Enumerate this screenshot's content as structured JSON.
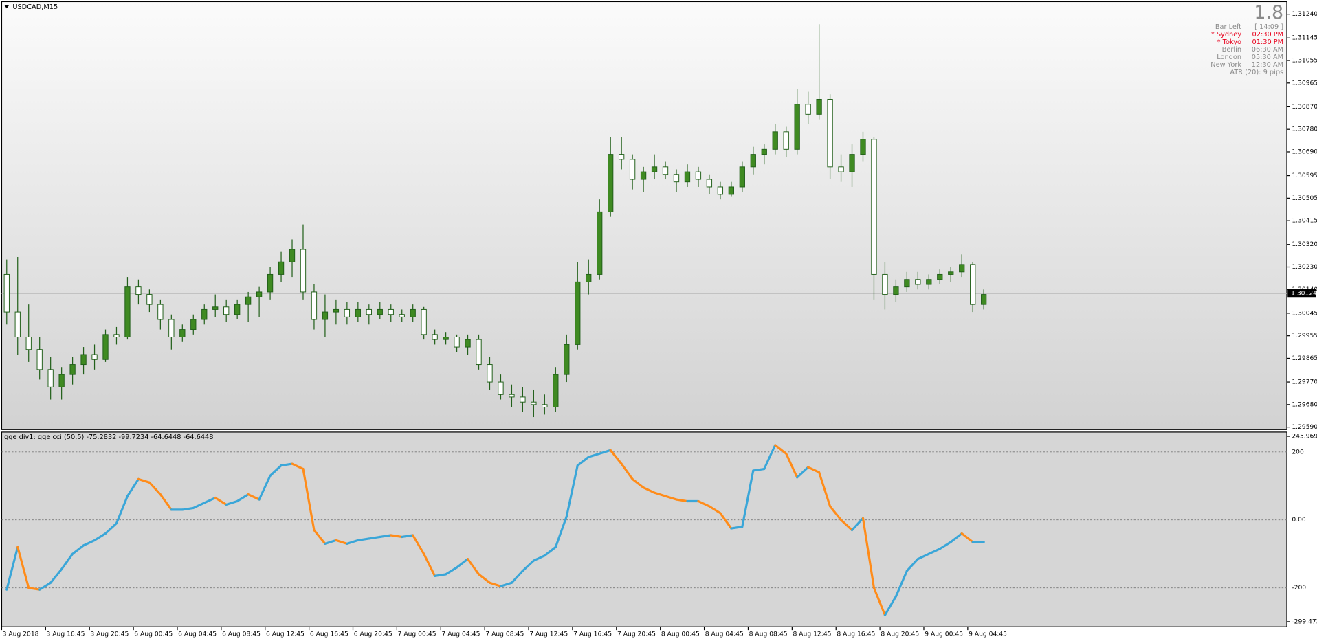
{
  "info_panel": {
    "spread": "1.8",
    "rows": [
      {
        "label": "Bar Left",
        "value": "[ 14:09 ]",
        "highlight": false
      },
      {
        "label": "* Sydney",
        "value": "02:30 PM",
        "highlight": true
      },
      {
        "label": "* Tokyo",
        "value": "01:30 PM",
        "highlight": true
      },
      {
        "label": "Berlin",
        "value": "06:30 AM",
        "highlight": false
      },
      {
        "label": "London",
        "value": "05:30 AM",
        "highlight": false
      },
      {
        "label": "New York",
        "value": "12:30 AM",
        "highlight": false
      }
    ],
    "atr": "ATR (20): 9 pips"
  },
  "chart_data": [
    {
      "type": "candlestick",
      "title": "USDCAD,M15",
      "color": "#3f8a22",
      "wick_color": "#22601a",
      "categories": [
        "3 Aug 2018",
        null,
        null,
        null,
        "3 Aug 16:45",
        null,
        null,
        null,
        "3 Aug 20:45",
        null,
        null,
        null,
        "6 Aug 00:45",
        null,
        null,
        null,
        "6 Aug 04:45",
        null,
        null,
        null,
        "6 Aug 08:45",
        null,
        null,
        null,
        "6 Aug 12:45",
        null,
        null,
        null,
        "6 Aug 16:45",
        null,
        null,
        null,
        "6 Aug 20:45",
        null,
        null,
        null,
        "7 Aug 00:45",
        null,
        null,
        null,
        "7 Aug 04:45",
        null,
        null,
        null,
        "7 Aug 08:45",
        null,
        null,
        null,
        "7 Aug 12:45",
        null,
        null,
        null,
        "7 Aug 16:45",
        null,
        null,
        null,
        "7 Aug 20:45",
        null,
        null,
        null,
        "8 Aug 00:45",
        null,
        null,
        null,
        "8 Aug 04:45",
        null,
        null,
        null,
        "8 Aug 08:45",
        null,
        null,
        null,
        "8 Aug 12:45",
        null,
        null,
        null,
        "8 Aug 16:45",
        null,
        null,
        null,
        "8 Aug 20:45",
        null,
        null,
        null,
        "9 Aug 00:45",
        null,
        null,
        null,
        "9 Aug 04:45",
        null
      ],
      "open": [
        1.302,
        1.3005,
        1.2995,
        1.299,
        1.2982,
        1.2975,
        1.298,
        1.2984,
        1.2988,
        1.2986,
        1.2996,
        1.2995,
        1.3015,
        1.3012,
        1.3008,
        1.3002,
        1.2995,
        1.2998,
        1.3002,
        1.3006,
        1.3007,
        1.3004,
        1.3008,
        1.3011,
        1.3013,
        1.302,
        1.3025,
        1.303,
        1.3013,
        1.3002,
        1.3005,
        1.3006,
        1.3003,
        1.3006,
        1.3004,
        1.3006,
        1.3004,
        1.3003,
        1.3006,
        1.2996,
        1.2994,
        1.2995,
        1.2991,
        1.2994,
        1.2984,
        1.2977,
        1.2972,
        1.2971,
        1.2969,
        1.2968,
        1.2967,
        1.298,
        1.2992,
        1.3017,
        1.302,
        1.3045,
        1.3068,
        1.3066,
        1.3058,
        1.3061,
        1.3063,
        1.306,
        1.3057,
        1.3061,
        1.3058,
        1.3055,
        1.3052,
        1.3055,
        1.3063,
        1.3068,
        1.307,
        1.3077,
        1.307,
        1.3088,
        1.3084,
        1.309,
        1.3063,
        1.3061,
        1.3068,
        1.3074,
        1.302,
        1.3012,
        1.3015,
        1.3018,
        1.3016,
        1.3018,
        1.302,
        1.3021,
        1.3024,
        1.3008
      ],
      "high": [
        1.3026,
        1.3027,
        1.3008,
        1.2995,
        1.2987,
        1.2983,
        1.2987,
        1.2991,
        1.2992,
        1.2998,
        1.2999,
        1.3019,
        1.3018,
        1.3014,
        1.301,
        1.3004,
        1.3,
        1.3004,
        1.3008,
        1.3012,
        1.301,
        1.301,
        1.3013,
        1.3015,
        1.3023,
        1.3029,
        1.3034,
        1.304,
        1.3016,
        1.3012,
        1.301,
        1.3009,
        1.3009,
        1.3008,
        1.3009,
        1.3008,
        1.3006,
        1.3008,
        1.3007,
        1.2998,
        1.2997,
        1.2996,
        1.2996,
        1.2996,
        1.2987,
        1.298,
        1.2976,
        1.2975,
        1.2974,
        1.2972,
        1.2983,
        1.2996,
        1.3025,
        1.3026,
        1.305,
        1.3075,
        1.3075,
        1.3068,
        1.3063,
        1.3068,
        1.3065,
        1.3062,
        1.3064,
        1.3063,
        1.306,
        1.3057,
        1.3057,
        1.3065,
        1.3071,
        1.3072,
        1.308,
        1.3079,
        1.3094,
        1.3093,
        1.312,
        1.3092,
        1.3068,
        1.3072,
        1.3077,
        1.3075,
        1.3025,
        1.3018,
        1.3021,
        1.3021,
        1.302,
        1.3022,
        1.3023,
        1.3028,
        1.3025,
        1.3014
      ],
      "low": [
        1.3,
        1.2988,
        1.2985,
        1.2978,
        1.297,
        1.297,
        1.2976,
        1.298,
        1.2982,
        1.2985,
        1.2992,
        1.2994,
        1.3008,
        1.3005,
        1.2998,
        1.299,
        1.2993,
        1.2996,
        1.3,
        1.3003,
        1.3001,
        1.3002,
        1.3001,
        1.3003,
        1.301,
        1.3017,
        1.3019,
        1.301,
        1.2998,
        1.2995,
        1.3,
        1.3,
        1.3001,
        1.3,
        1.3002,
        1.3001,
        1.3001,
        1.3001,
        1.2994,
        1.2992,
        1.2992,
        1.2989,
        1.2988,
        1.2982,
        1.2974,
        1.297,
        1.2967,
        1.2965,
        1.2963,
        1.2964,
        1.2965,
        1.2977,
        1.299,
        1.3012,
        1.3018,
        1.3043,
        1.3062,
        1.3054,
        1.3053,
        1.3058,
        1.3058,
        1.3053,
        1.3055,
        1.3055,
        1.3052,
        1.305,
        1.3051,
        1.3053,
        1.306,
        1.3064,
        1.3068,
        1.3067,
        1.3068,
        1.308,
        1.3082,
        1.3058,
        1.3057,
        1.3055,
        1.3065,
        1.301,
        1.3006,
        1.3009,
        1.3013,
        1.3014,
        1.3014,
        1.3016,
        1.3017,
        1.3019,
        1.3005,
        1.3006
      ],
      "close": [
        1.3005,
        1.2995,
        1.299,
        1.2982,
        1.2975,
        1.298,
        1.2984,
        1.2988,
        1.2986,
        1.2996,
        1.2995,
        1.3015,
        1.3012,
        1.3008,
        1.3002,
        1.2995,
        1.2998,
        1.3002,
        1.3006,
        1.3007,
        1.3004,
        1.3008,
        1.3011,
        1.3013,
        1.302,
        1.3025,
        1.303,
        1.3013,
        1.3002,
        1.3005,
        1.3006,
        1.3003,
        1.3006,
        1.3004,
        1.3006,
        1.3004,
        1.3003,
        1.3006,
        1.2996,
        1.2994,
        1.2995,
        1.2991,
        1.2994,
        1.2984,
        1.2977,
        1.2972,
        1.2971,
        1.2969,
        1.2968,
        1.2967,
        1.298,
        1.2992,
        1.3017,
        1.302,
        1.3045,
        1.3068,
        1.3066,
        1.3058,
        1.3061,
        1.3063,
        1.306,
        1.3057,
        1.3061,
        1.3058,
        1.3055,
        1.3052,
        1.3055,
        1.3063,
        1.3068,
        1.307,
        1.3077,
        1.307,
        1.3088,
        1.3084,
        1.309,
        1.3063,
        1.3061,
        1.3068,
        1.3074,
        1.302,
        1.3012,
        1.3015,
        1.3018,
        1.3016,
        1.3018,
        1.302,
        1.3021,
        1.3024,
        1.3008,
        1.3012
      ],
      "last_price": 1.30124,
      "ylim": [
        1.2958,
        1.3129
      ],
      "yticks": [
        {
          "value": 1.3124,
          "label": "1.31240"
        },
        {
          "value": 1.31145,
          "label": "1.31145"
        },
        {
          "value": 1.31055,
          "label": "1.31055"
        },
        {
          "value": 1.30965,
          "label": "1.30965"
        },
        {
          "value": 1.3087,
          "label": "1.30870"
        },
        {
          "value": 1.3078,
          "label": "1.30780"
        },
        {
          "value": 1.3069,
          "label": "1.30690"
        },
        {
          "value": 1.30595,
          "label": "1.30595"
        },
        {
          "value": 1.30505,
          "label": "1.30505"
        },
        {
          "value": 1.30415,
          "label": "1.30415"
        },
        {
          "value": 1.3032,
          "label": "1.30320"
        },
        {
          "value": 1.3023,
          "label": "1.30230"
        },
        {
          "value": 1.3014,
          "label": "1.30140"
        },
        {
          "value": 1.30045,
          "label": "1.30045"
        },
        {
          "value": 1.29955,
          "label": "1.29955"
        },
        {
          "value": 1.29865,
          "label": "1.29865"
        },
        {
          "value": 1.2977,
          "label": "1.29770"
        },
        {
          "value": 1.2968,
          "label": "1.29680"
        },
        {
          "value": 1.2959,
          "label": "1.29590"
        }
      ]
    },
    {
      "type": "line",
      "title": "qqe div1: qqe cci (50,5) -75.2832 -99.7234 -64.6448 -64.6448",
      "up_color": "#3aa6d8",
      "down_color": "#ff8c1a",
      "values": [
        -205,
        -80,
        -200,
        -205,
        -185,
        -145,
        -100,
        -75,
        -60,
        -40,
        -10,
        70,
        120,
        110,
        75,
        30,
        30,
        35,
        50,
        65,
        45,
        55,
        75,
        60,
        130,
        160,
        165,
        150,
        -30,
        -70,
        -60,
        -70,
        -60,
        -55,
        -50,
        -45,
        -50,
        -45,
        -100,
        -165,
        -160,
        -140,
        -115,
        -160,
        -185,
        -195,
        -185,
        -150,
        -120,
        -105,
        -80,
        10,
        160,
        185,
        195,
        205,
        165,
        120,
        95,
        80,
        70,
        60,
        55,
        55,
        40,
        20,
        -25,
        -20,
        145,
        150,
        220,
        195,
        125,
        155,
        140,
        40,
        0,
        -30,
        5,
        -200,
        -280,
        -225,
        -150,
        -115,
        -100,
        -85,
        -65,
        -40,
        -65,
        -65
      ],
      "ylim": [
        -299.473,
        245.9699
      ],
      "yticks": [
        245.9699,
        200,
        {
          "value": 0,
          "label": "0.00"
        },
        -200,
        -299.473
      ]
    }
  ]
}
